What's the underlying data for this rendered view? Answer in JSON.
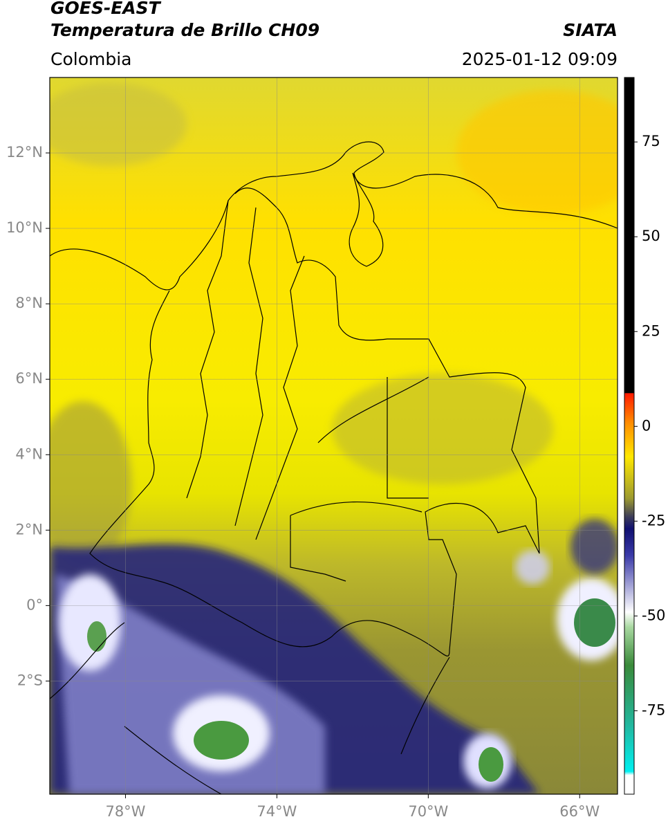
{
  "header": {
    "title": "GOES-EAST",
    "subtitle": "Temperatura de Brillo CH09",
    "brand": "SIATA",
    "region": "Colombia",
    "datetime": "2025-01-12 09:09"
  },
  "map": {
    "xlim": [
      -80,
      -65
    ],
    "ylim": [
      -5,
      14
    ],
    "grid": true,
    "xticks": [
      {
        "value": -78,
        "label": "78°W"
      },
      {
        "value": -74,
        "label": "74°W"
      },
      {
        "value": -70,
        "label": "70°W"
      },
      {
        "value": -66,
        "label": "66°W"
      }
    ],
    "yticks": [
      {
        "value": 12,
        "label": "12°N"
      },
      {
        "value": 10,
        "label": "10°N"
      },
      {
        "value": 8,
        "label": "8°N"
      },
      {
        "value": 6,
        "label": "6°N"
      },
      {
        "value": 4,
        "label": "4°N"
      },
      {
        "value": 2,
        "label": "2°N"
      },
      {
        "value": 0,
        "label": "0°"
      },
      {
        "value": -2,
        "label": "2°S"
      }
    ]
  },
  "colorbar": {
    "clim": [
      -97,
      92
    ],
    "ticks": [
      75,
      50,
      25,
      0,
      -25,
      -50,
      -75
    ],
    "stops": [
      {
        "value": 92,
        "color": "#000000"
      },
      {
        "value": 8.8,
        "color": "#000000"
      },
      {
        "value": 8.7,
        "color": "#ff1a00"
      },
      {
        "value": 1,
        "color": "#ff8c00"
      },
      {
        "value": -8,
        "color": "#ffe800"
      },
      {
        "value": -19,
        "color": "#9c9a30"
      },
      {
        "value": -24,
        "color": "#3a3a5a"
      },
      {
        "value": -27,
        "color": "#101070"
      },
      {
        "value": -34,
        "color": "#3a3aa8"
      },
      {
        "value": -49,
        "color": "#ffffff"
      },
      {
        "value": -53,
        "color": "#a8d8a0"
      },
      {
        "value": -63,
        "color": "#3a8a3a"
      },
      {
        "value": -79,
        "color": "#22b8a0"
      },
      {
        "value": -91,
        "color": "#00f0f0"
      },
      {
        "value": -92,
        "color": "#ffffff"
      },
      {
        "value": -97,
        "color": "#ffffff"
      }
    ]
  }
}
